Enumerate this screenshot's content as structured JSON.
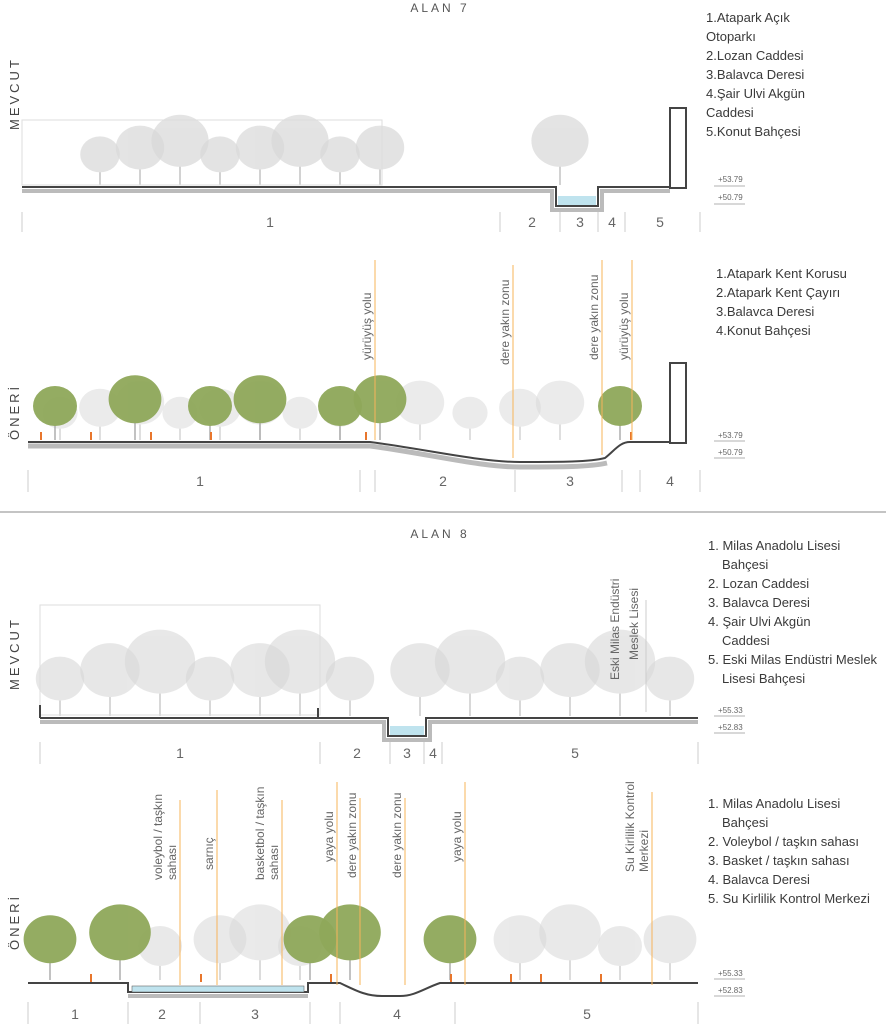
{
  "alan7": {
    "title": "ALAN 7",
    "mevcut": {
      "side_label": "MEVCUT",
      "legend": [
        "1.Atapark Açık Otoparkı",
        "2.Lozan Caddesi",
        "3.Balavca Deresi",
        "4.Şair Ulvi Akgün Caddesi",
        "5.Konut Bahçesi"
      ],
      "zones": [
        "1",
        "2",
        "3",
        "4",
        "5"
      ],
      "elevations": [
        "+53.79",
        "+50.79"
      ]
    },
    "oneri": {
      "side_label": "ÖNERİ",
      "legend": [
        "1.Atapark Kent Korusu",
        "2.Atapark Kent Çayırı",
        "3.Balavca Deresi",
        "4.Konut Bahçesi"
      ],
      "zones": [
        "1",
        "2",
        "3",
        "4"
      ],
      "annotations": [
        "yürüyüş yolu",
        "dere yakın zonu",
        "dere yakın zonu",
        "yürüyüş yolu"
      ],
      "elevations": [
        "+53.79",
        "+50.79"
      ]
    }
  },
  "alan8": {
    "title": "ALAN 8",
    "mevcut": {
      "side_label": "MEVCUT",
      "legend": [
        "1. Milas Anadolu Lisesi Bahçesi",
        "2. Lozan Caddesi",
        "3. Balavca Deresi",
        "4. Şair Ulvi Akgün Caddesi",
        "5. Eski Milas Endüstri Meslek Lisesi Bahçesi"
      ],
      "zones": [
        "1",
        "2",
        "3",
        "4",
        "5"
      ],
      "annotation": [
        "Eski Milas Endüstri",
        "Meslek Lisesi"
      ],
      "elevations": [
        "+55.33",
        "+52.83"
      ]
    },
    "oneri": {
      "side_label": "ÖNERİ",
      "legend": [
        "1. Milas Anadolu Lisesi Bahçesi",
        "2. Voleybol / taşkın sahası",
        "3. Basket / taşkın sahası",
        "4. Balavca Deresi",
        "5. Su Kirlilik Kontrol Merkezi"
      ],
      "zones": [
        "1",
        "2",
        "3",
        "4",
        "5"
      ],
      "annotations": [
        [
          "voleybol / taşkın",
          "sahası"
        ],
        [
          "sarnıç"
        ],
        [
          "basketbol / taşkın",
          "sahası"
        ],
        [
          "yaya yolu"
        ],
        [
          "dere yakın zonu"
        ],
        [
          "dere yakın zonu"
        ],
        [
          "yaya yolu"
        ],
        [
          "Su Kirlilik Kontrol",
          "Merkezi"
        ]
      ],
      "elevations": [
        "+55.33",
        "+52.83"
      ]
    }
  },
  "colors": {
    "annotation_line": "#f7b45a",
    "green_tree": "#8fa85a",
    "ghost_tree": "#d8d8d8",
    "water": "#bfe3ee",
    "ground": "#444444",
    "people": "#e8762c"
  }
}
